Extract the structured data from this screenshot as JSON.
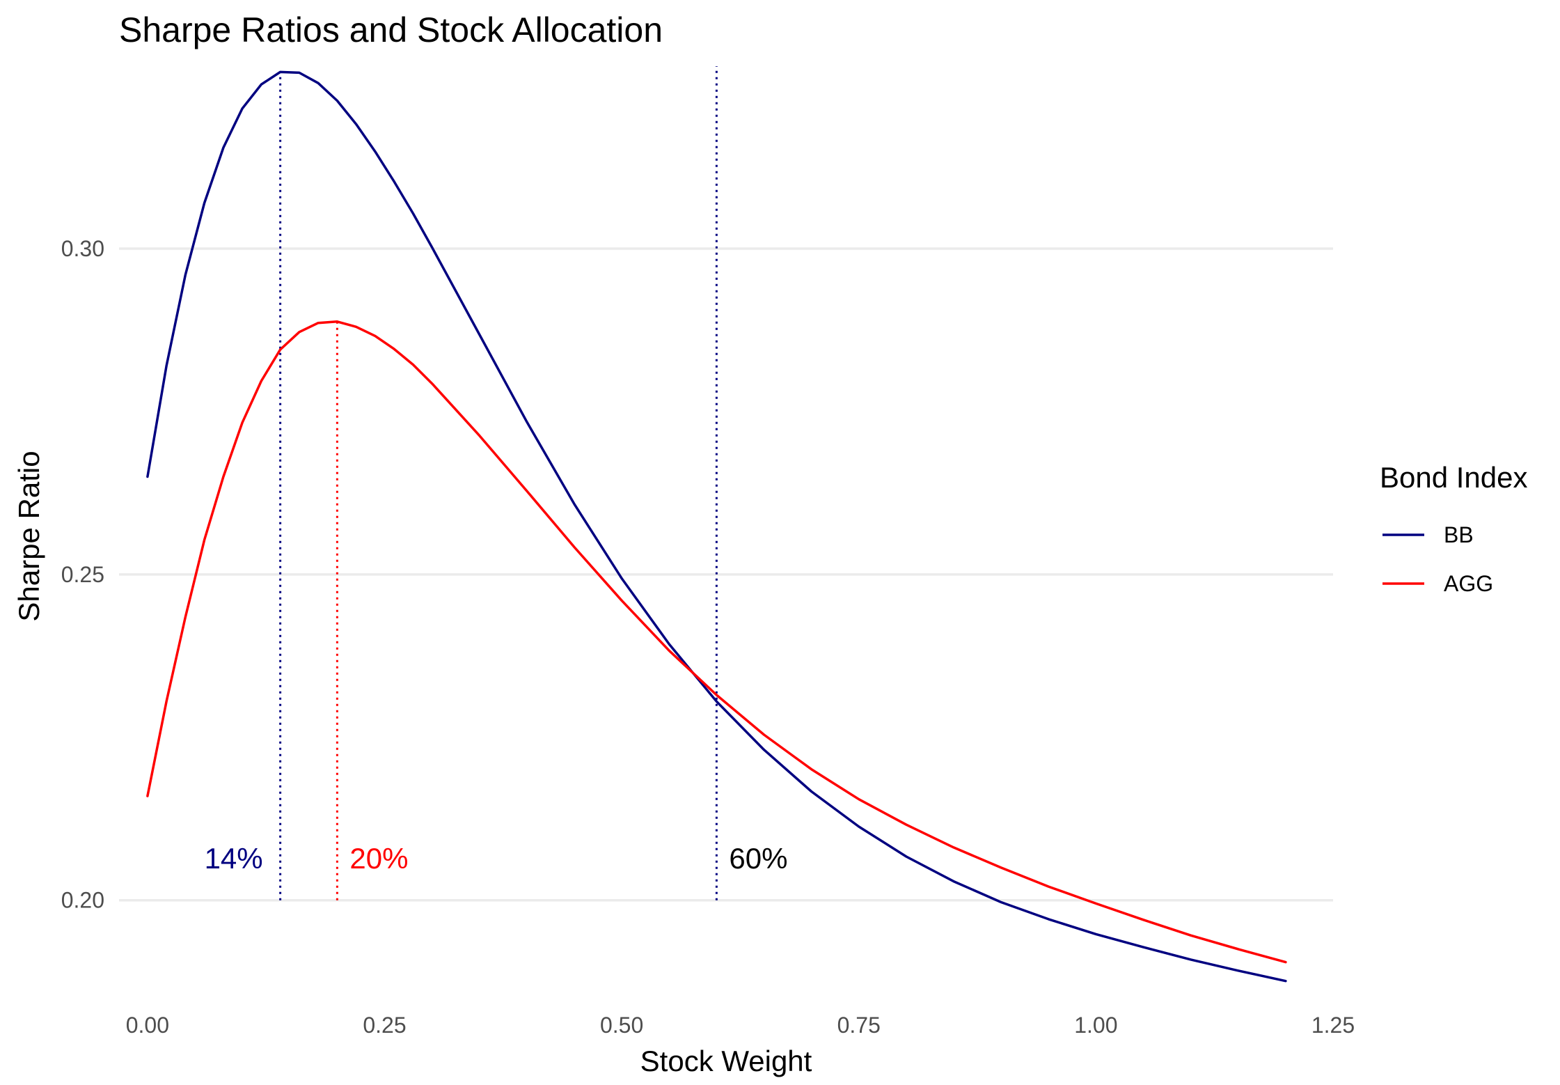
{
  "chart_data": {
    "type": "line",
    "title": "Sharpe Ratios and Stock Allocation",
    "xlabel": "Stock Weight",
    "ylabel": "Sharpe Ratio",
    "xlim": [
      -0.03,
      1.25
    ],
    "ylim": [
      0.188,
      0.328
    ],
    "x_ticks": [
      0.0,
      0.25,
      0.5,
      0.75,
      1.0,
      1.25
    ],
    "x_tick_labels": [
      "0.00",
      "0.25",
      "0.50",
      "0.75",
      "1.00",
      "1.25"
    ],
    "y_ticks": [
      0.2,
      0.25,
      0.3
    ],
    "y_tick_labels": [
      "0.20",
      "0.25",
      "0.30"
    ],
    "grid": "horizontal major only",
    "legend": {
      "title": "Bond Index",
      "position": "right",
      "entries": [
        {
          "label": "BB",
          "color": "#000080"
        },
        {
          "label": "AGG",
          "color": "#ff0000"
        }
      ]
    },
    "series": [
      {
        "name": "BB",
        "color": "#000080",
        "x": [
          0.0,
          0.02,
          0.04,
          0.06,
          0.08,
          0.1,
          0.12,
          0.14,
          0.16,
          0.18,
          0.2,
          0.22,
          0.24,
          0.26,
          0.28,
          0.3,
          0.35,
          0.4,
          0.45,
          0.5,
          0.55,
          0.6,
          0.65,
          0.7,
          0.75,
          0.8,
          0.85,
          0.9,
          0.95,
          1.0,
          1.05,
          1.1,
          1.15,
          1.2
        ],
        "y": [
          0.265,
          0.282,
          0.296,
          0.307,
          0.3155,
          0.3215,
          0.3252,
          0.3271,
          0.327,
          0.3254,
          0.3227,
          0.3191,
          0.3149,
          0.3103,
          0.3054,
          0.3002,
          0.2868,
          0.2734,
          0.2608,
          0.2494,
          0.2393,
          0.2305,
          0.2231,
          0.2167,
          0.2113,
          0.2067,
          0.2029,
          0.1997,
          0.1971,
          0.1948,
          0.1928,
          0.1909,
          0.1892,
          0.1876
        ]
      },
      {
        "name": "AGG",
        "color": "#ff0000",
        "x": [
          0.0,
          0.02,
          0.04,
          0.06,
          0.08,
          0.1,
          0.12,
          0.14,
          0.16,
          0.18,
          0.2,
          0.22,
          0.24,
          0.26,
          0.28,
          0.3,
          0.35,
          0.4,
          0.45,
          0.5,
          0.55,
          0.6,
          0.65,
          0.7,
          0.75,
          0.8,
          0.85,
          0.9,
          0.95,
          1.0,
          1.05,
          1.1,
          1.15,
          1.2
        ],
        "y": [
          0.216,
          0.2305,
          0.2435,
          0.2553,
          0.265,
          0.2733,
          0.2797,
          0.2845,
          0.2872,
          0.2886,
          0.2888,
          0.288,
          0.2866,
          0.2846,
          0.2822,
          0.2793,
          0.2713,
          0.2628,
          0.2542,
          0.246,
          0.2383,
          0.2315,
          0.2254,
          0.2201,
          0.2155,
          0.2116,
          0.2081,
          0.205,
          0.2021,
          0.1995,
          0.197,
          0.1946,
          0.1925,
          0.1905
        ]
      }
    ],
    "vlines": [
      {
        "x": 0.14,
        "color": "#000080",
        "style": "dotted",
        "label": "14%",
        "label_color": "#000080",
        "label_side": "left"
      },
      {
        "x": 0.2,
        "color": "#ff0000",
        "style": "dotted",
        "label": "20%",
        "label_color": "#ff0000",
        "label_side": "right"
      },
      {
        "x": 0.6,
        "color": "#000080",
        "style": "dotted",
        "label": "60%",
        "label_color": "#000000",
        "label_side": "right"
      }
    ],
    "vline_label_y": 0.2065
  }
}
